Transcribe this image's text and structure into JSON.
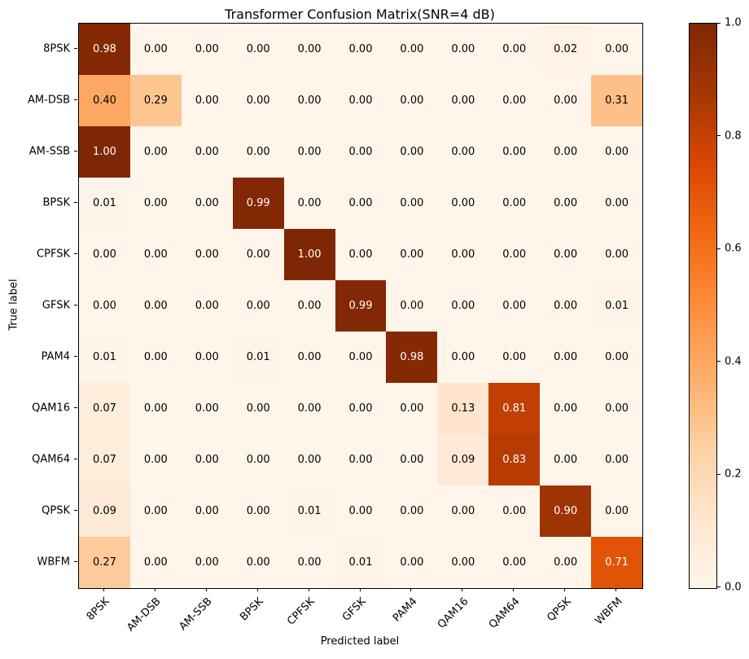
{
  "figure": {
    "title": "Transformer Confusion Matrix(SNR=4 dB)"
  },
  "chart_data": {
    "type": "heatmap",
    "title": "Transformer Confusion Matrix(SNR=4 dB)",
    "xlabel": "Predicted label",
    "ylabel": "True label",
    "classes": [
      "8PSK",
      "AM-DSB",
      "AM-SSB",
      "BPSK",
      "CPFSK",
      "GFSK",
      "PAM4",
      "QAM16",
      "QAM64",
      "QPSK",
      "WBFM"
    ],
    "matrix": [
      [
        0.98,
        0.0,
        0.0,
        0.0,
        0.0,
        0.0,
        0.0,
        0.0,
        0.0,
        0.02,
        0.0
      ],
      [
        0.4,
        0.29,
        0.0,
        0.0,
        0.0,
        0.0,
        0.0,
        0.0,
        0.0,
        0.0,
        0.31
      ],
      [
        1.0,
        0.0,
        0.0,
        0.0,
        0.0,
        0.0,
        0.0,
        0.0,
        0.0,
        0.0,
        0.0
      ],
      [
        0.01,
        0.0,
        0.0,
        0.99,
        0.0,
        0.0,
        0.0,
        0.0,
        0.0,
        0.0,
        0.0
      ],
      [
        0.0,
        0.0,
        0.0,
        0.0,
        1.0,
        0.0,
        0.0,
        0.0,
        0.0,
        0.0,
        0.0
      ],
      [
        0.0,
        0.0,
        0.0,
        0.0,
        0.0,
        0.99,
        0.0,
        0.0,
        0.0,
        0.0,
        0.01
      ],
      [
        0.01,
        0.0,
        0.0,
        0.01,
        0.0,
        0.0,
        0.98,
        0.0,
        0.0,
        0.0,
        0.0
      ],
      [
        0.07,
        0.0,
        0.0,
        0.0,
        0.0,
        0.0,
        0.0,
        0.13,
        0.81,
        0.0,
        0.0
      ],
      [
        0.07,
        0.0,
        0.0,
        0.0,
        0.0,
        0.0,
        0.0,
        0.09,
        0.83,
        0.0,
        0.0
      ],
      [
        0.09,
        0.0,
        0.0,
        0.0,
        0.01,
        0.0,
        0.0,
        0.0,
        0.0,
        0.9,
        0.0
      ],
      [
        0.27,
        0.0,
        0.0,
        0.0,
        0.0,
        0.01,
        0.0,
        0.0,
        0.0,
        0.0,
        0.71
      ]
    ],
    "value_format_decimals": 2,
    "vmin": 0.0,
    "vmax": 1.0,
    "colormap": "Oranges",
    "cell_text_threshold": 0.5,
    "colorbar_ticks": [
      {
        "value": 0.0,
        "label": "0.0"
      },
      {
        "value": 0.2,
        "label": "0.2"
      },
      {
        "value": 0.4,
        "label": "0.4"
      },
      {
        "value": 0.6,
        "label": "0.6"
      },
      {
        "value": 0.8,
        "label": "0.8"
      },
      {
        "value": 1.0,
        "label": "1.0"
      }
    ],
    "legend_position": "right-colorbar",
    "grid": false
  },
  "colors": {
    "background": "#ffffff",
    "axis_line": "#000000",
    "tick_text": "#000000",
    "cell_text_dark": "#000000",
    "cell_text_light": "#ffffff",
    "oranges_anchors": [
      "#fff5eb",
      "#fee6ce",
      "#fdd0a2",
      "#fdae6b",
      "#fd8d3c",
      "#f16913",
      "#d94801",
      "#a63603",
      "#7f2704"
    ]
  }
}
